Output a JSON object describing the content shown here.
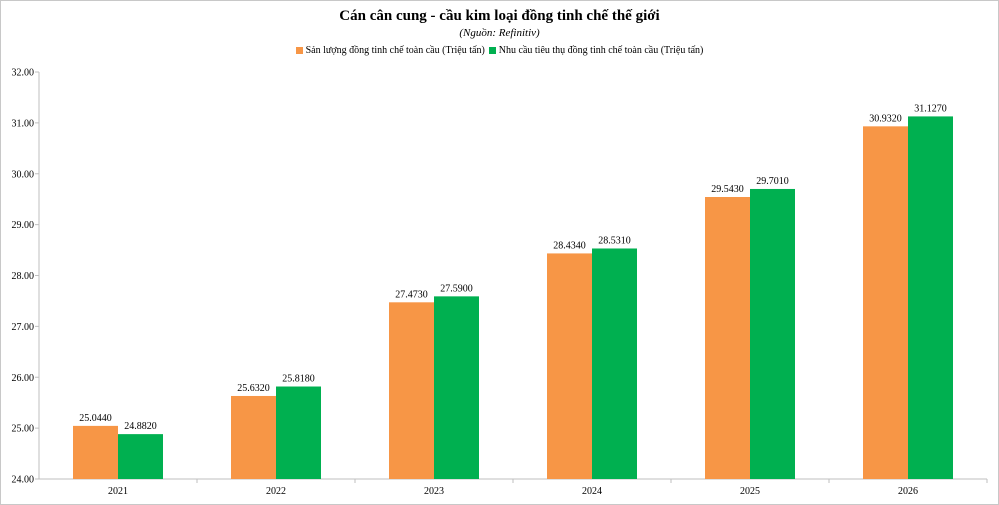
{
  "chart_data": {
    "type": "bar",
    "title": "Cán cân cung - cầu kim loại đồng tinh chế thế giới",
    "subtitle": "(Nguồn: Refinitiv)",
    "categories": [
      "2021",
      "2022",
      "2023",
      "2024",
      "2025",
      "2026"
    ],
    "series": [
      {
        "name": "Sản lượng đồng tinh chế toàn cầu (Triệu tấn)",
        "color": "#f79646",
        "values": [
          25.044,
          25.632,
          27.473,
          28.434,
          29.543,
          30.932
        ],
        "labels": [
          "25.0440",
          "25.6320",
          "27.4730",
          "28.4340",
          "29.5430",
          "30.9320"
        ]
      },
      {
        "name": "Nhu cầu tiêu thụ đồng tinh chế toàn cầu (Triệu tấn)",
        "color": "#00b050",
        "values": [
          24.882,
          25.818,
          27.59,
          28.531,
          29.701,
          31.127
        ],
        "labels": [
          "24.8820",
          "25.8180",
          "27.5900",
          "28.5310",
          "29.7010",
          "31.1270"
        ]
      }
    ],
    "ylim": [
      24,
      32
    ],
    "yticks": [
      "24.00",
      "25.00",
      "26.00",
      "27.00",
      "28.00",
      "29.00",
      "30.00",
      "31.00",
      "32.00"
    ],
    "xlabel": "",
    "ylabel": "",
    "legend": "top-center",
    "grid": false
  }
}
